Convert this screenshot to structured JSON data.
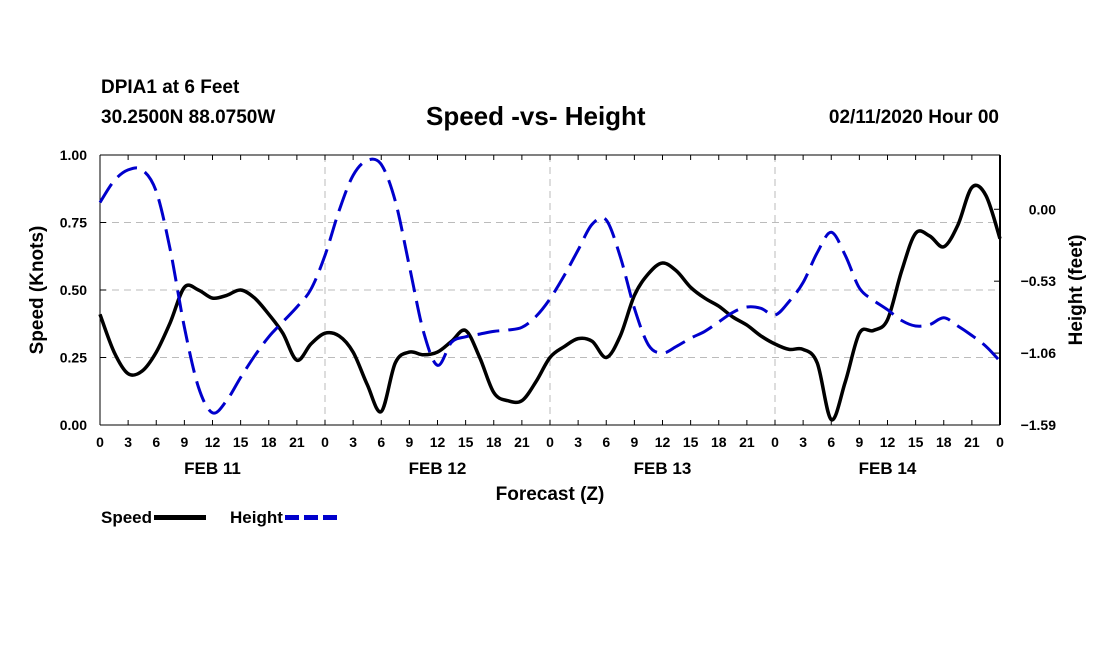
{
  "header": {
    "station": "DPIA1 at 6 Feet",
    "coords": "30.2500N 88.0750W",
    "title": "Speed -vs- Height",
    "datetime": "02/11/2020 Hour 00"
  },
  "legend": {
    "speed_label": "Speed",
    "height_label": "Height"
  },
  "colors": {
    "speed": "#000000",
    "height": "#0000cc",
    "grid": "#bbbbbb"
  },
  "chart_data": {
    "type": "line",
    "title": "Speed -vs- Height",
    "xlabel": "Forecast (Z)",
    "ylabel_left": "Speed (Knots)",
    "ylabel_right": "Height (feet)",
    "x_range_hours": [
      0,
      96
    ],
    "ylim_left": [
      0,
      1
    ],
    "ylim_right": [
      -1.59,
      0.4
    ],
    "x_tick_hours": [
      0,
      3,
      6,
      9,
      12,
      15,
      18,
      21,
      24,
      27,
      30,
      33,
      36,
      39,
      42,
      45,
      48,
      51,
      54,
      57,
      60,
      63,
      66,
      69,
      72,
      75,
      78,
      81,
      84,
      87,
      90,
      93,
      96
    ],
    "x_tick_labels": [
      "0",
      "3",
      "6",
      "9",
      "12",
      "15",
      "18",
      "21",
      "0",
      "3",
      "6",
      "9",
      "12",
      "15",
      "18",
      "21",
      "0",
      "3",
      "6",
      "9",
      "12",
      "15",
      "18",
      "21",
      "0",
      "3",
      "6",
      "9",
      "12",
      "15",
      "18",
      "21",
      "0"
    ],
    "day_labels": [
      {
        "hour": 12,
        "label": "FEB 11"
      },
      {
        "hour": 36,
        "label": "FEB 12"
      },
      {
        "hour": 60,
        "label": "FEB 13"
      },
      {
        "hour": 84,
        "label": "FEB 14"
      }
    ],
    "left_ticks": [
      {
        "value": 0,
        "label": "0.00"
      },
      {
        "value": 0.25,
        "label": "0.25"
      },
      {
        "value": 0.5,
        "label": "0.50"
      },
      {
        "value": 0.75,
        "label": "0.75"
      },
      {
        "value": 1.0,
        "label": "1.00"
      }
    ],
    "right_ticks": [
      {
        "value": 0.0,
        "label": "0.00"
      },
      {
        "value": -0.53,
        "label": "−0.53"
      },
      {
        "value": -1.06,
        "label": "−1.06"
      },
      {
        "value": -1.59,
        "label": "−1.59"
      }
    ],
    "series": [
      {
        "name": "Speed",
        "axis": "left",
        "style": "solid",
        "points": [
          [
            0,
            0.41
          ],
          [
            1.5,
            0.27
          ],
          [
            3,
            0.19
          ],
          [
            4.5,
            0.2
          ],
          [
            6,
            0.27
          ],
          [
            7.5,
            0.38
          ],
          [
            9,
            0.51
          ],
          [
            10.5,
            0.5
          ],
          [
            12,
            0.47
          ],
          [
            13.5,
            0.48
          ],
          [
            15,
            0.5
          ],
          [
            16.5,
            0.47
          ],
          [
            18,
            0.41
          ],
          [
            19.5,
            0.34
          ],
          [
            21,
            0.24
          ],
          [
            22.5,
            0.3
          ],
          [
            24,
            0.34
          ],
          [
            25.5,
            0.33
          ],
          [
            27,
            0.27
          ],
          [
            28.5,
            0.15
          ],
          [
            30,
            0.05
          ],
          [
            31.5,
            0.23
          ],
          [
            33,
            0.27
          ],
          [
            34.5,
            0.26
          ],
          [
            36,
            0.27
          ],
          [
            37.5,
            0.31
          ],
          [
            39,
            0.35
          ],
          [
            40.5,
            0.25
          ],
          [
            42,
            0.12
          ],
          [
            43.5,
            0.09
          ],
          [
            45,
            0.09
          ],
          [
            46.5,
            0.16
          ],
          [
            48,
            0.25
          ],
          [
            49.5,
            0.29
          ],
          [
            51,
            0.32
          ],
          [
            52.5,
            0.31
          ],
          [
            54,
            0.25
          ],
          [
            55.5,
            0.33
          ],
          [
            57,
            0.48
          ],
          [
            58.5,
            0.56
          ],
          [
            60,
            0.6
          ],
          [
            61.5,
            0.57
          ],
          [
            63,
            0.51
          ],
          [
            64.5,
            0.47
          ],
          [
            66,
            0.44
          ],
          [
            67.5,
            0.4
          ],
          [
            69,
            0.37
          ],
          [
            70.5,
            0.33
          ],
          [
            72,
            0.3
          ],
          [
            73.5,
            0.28
          ],
          [
            75,
            0.28
          ],
          [
            76.5,
            0.23
          ],
          [
            78,
            0.02
          ],
          [
            79.5,
            0.16
          ],
          [
            81,
            0.34
          ],
          [
            82.5,
            0.35
          ],
          [
            84,
            0.39
          ],
          [
            85.5,
            0.57
          ],
          [
            87,
            0.71
          ],
          [
            88.5,
            0.7
          ],
          [
            90,
            0.66
          ],
          [
            91.5,
            0.74
          ],
          [
            93,
            0.88
          ],
          [
            94.5,
            0.85
          ],
          [
            96,
            0.69
          ]
        ]
      },
      {
        "name": "Height",
        "axis": "right",
        "style": "dashed",
        "points": [
          [
            0,
            0.05
          ],
          [
            1.5,
            0.21
          ],
          [
            3,
            0.29
          ],
          [
            4.5,
            0.29
          ],
          [
            6,
            0.13
          ],
          [
            7.5,
            -0.3
          ],
          [
            9,
            -0.87
          ],
          [
            10.5,
            -1.31
          ],
          [
            12,
            -1.5
          ],
          [
            13.5,
            -1.41
          ],
          [
            15,
            -1.24
          ],
          [
            16.5,
            -1.08
          ],
          [
            18,
            -0.94
          ],
          [
            19.5,
            -0.83
          ],
          [
            21,
            -0.72
          ],
          [
            22.5,
            -0.59
          ],
          [
            24,
            -0.34
          ],
          [
            25.5,
            -0.01
          ],
          [
            27,
            0.25
          ],
          [
            28.5,
            0.36
          ],
          [
            30,
            0.33
          ],
          [
            31.5,
            0.06
          ],
          [
            33,
            -0.42
          ],
          [
            34.5,
            -0.9
          ],
          [
            36,
            -1.15
          ],
          [
            37.5,
            -0.98
          ],
          [
            39,
            -0.94
          ],
          [
            40.5,
            -0.92
          ],
          [
            42,
            -0.9
          ],
          [
            43.5,
            -0.89
          ],
          [
            45,
            -0.87
          ],
          [
            46.5,
            -0.79
          ],
          [
            48,
            -0.66
          ],
          [
            49.5,
            -0.49
          ],
          [
            51,
            -0.3
          ],
          [
            52.5,
            -0.11
          ],
          [
            54,
            -0.08
          ],
          [
            55.5,
            -0.35
          ],
          [
            57,
            -0.73
          ],
          [
            58.5,
            -1.0
          ],
          [
            60,
            -1.06
          ],
          [
            61.5,
            -1.01
          ],
          [
            63,
            -0.95
          ],
          [
            64.5,
            -0.9
          ],
          [
            66,
            -0.83
          ],
          [
            67.5,
            -0.76
          ],
          [
            69,
            -0.72
          ],
          [
            70.5,
            -0.73
          ],
          [
            72,
            -0.78
          ],
          [
            73.5,
            -0.68
          ],
          [
            75,
            -0.54
          ],
          [
            76.5,
            -0.32
          ],
          [
            78,
            -0.17
          ],
          [
            79.5,
            -0.34
          ],
          [
            81,
            -0.58
          ],
          [
            82.5,
            -0.67
          ],
          [
            84,
            -0.74
          ],
          [
            85.5,
            -0.82
          ],
          [
            87,
            -0.86
          ],
          [
            88.5,
            -0.85
          ],
          [
            90,
            -0.8
          ],
          [
            91.5,
            -0.86
          ],
          [
            93,
            -0.93
          ],
          [
            94.5,
            -1.01
          ],
          [
            96,
            -1.12
          ]
        ]
      }
    ]
  }
}
